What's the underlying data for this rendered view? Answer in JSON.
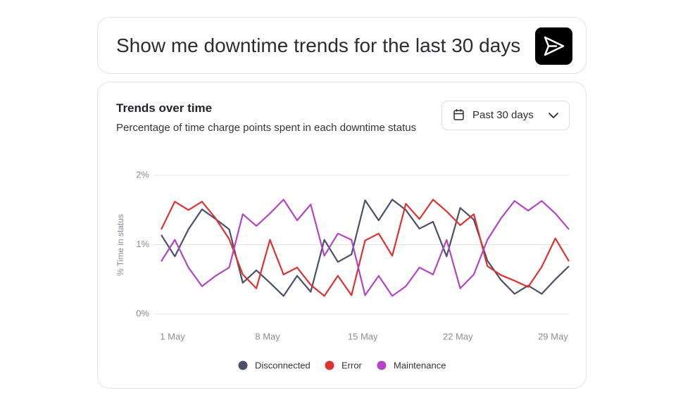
{
  "prompt": "Show me downtime trends for the last 30 days",
  "date_range": "Past 30 days",
  "chart_data": {
    "type": "line",
    "title": "Trends over time",
    "subtitle": "Percentage of time charge points spent in each downtime status",
    "y_label": "% Time in status",
    "x": [
      1,
      2,
      3,
      4,
      5,
      6,
      7,
      8,
      9,
      10,
      11,
      12,
      13,
      14,
      15,
      16,
      17,
      18,
      19,
      20,
      21,
      22,
      23,
      24,
      25,
      26,
      27,
      28,
      29,
      30,
      31
    ],
    "xlim": [
      1,
      31
    ],
    "xticks": [
      {
        "value": 1,
        "label": "1 May"
      },
      {
        "value": 8,
        "label": "8 May"
      },
      {
        "value": 15,
        "label": "15 May"
      },
      {
        "value": 22,
        "label": "22 May"
      },
      {
        "value": 29,
        "label": "29 May"
      }
    ],
    "ylim": [
      0,
      2
    ],
    "yticks": [
      {
        "value": 0,
        "label": "0%"
      },
      {
        "value": 1,
        "label": "1%"
      },
      {
        "value": 2,
        "label": "2%"
      }
    ],
    "grid": true,
    "legend": "bottom",
    "series": [
      {
        "name": "Disconnected",
        "color": "#4b5068",
        "values": [
          1.14,
          0.83,
          1.22,
          1.51,
          1.37,
          1.22,
          0.45,
          0.63,
          0.45,
          0.26,
          0.55,
          0.32,
          1.07,
          0.75,
          0.86,
          1.64,
          1.35,
          1.65,
          1.5,
          1.23,
          1.33,
          0.83,
          1.53,
          1.36,
          0.77,
          0.49,
          0.29,
          0.41,
          0.29,
          0.5,
          0.69
        ]
      },
      {
        "name": "Error",
        "color": "#dc3232",
        "values": [
          1.22,
          1.62,
          1.5,
          1.62,
          1.38,
          1.08,
          0.57,
          0.37,
          1.07,
          0.57,
          0.67,
          0.42,
          0.26,
          0.55,
          0.27,
          1.06,
          1.16,
          0.84,
          1.59,
          1.37,
          1.65,
          1.48,
          1.28,
          1.44,
          0.69,
          0.56,
          0.48,
          0.39,
          0.68,
          1.09,
          0.76
        ]
      },
      {
        "name": "Maintenance",
        "color": "#b146c2",
        "values": [
          0.76,
          1.07,
          0.67,
          0.4,
          0.55,
          0.67,
          1.44,
          1.27,
          1.45,
          1.65,
          1.35,
          1.58,
          0.84,
          1.16,
          1.07,
          0.27,
          0.55,
          0.26,
          0.4,
          0.67,
          0.57,
          1.07,
          0.37,
          0.57,
          1.07,
          1.38,
          1.63,
          1.49,
          1.63,
          1.45,
          1.22
        ]
      }
    ]
  }
}
